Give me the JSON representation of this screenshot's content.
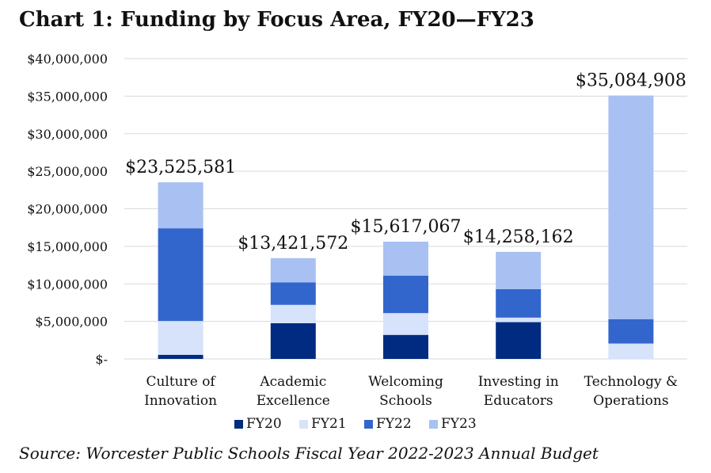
{
  "title": "Chart 1: Funding by Focus Area, FY20—FY23",
  "source": "Source: Worcester Public Schools Fiscal Year 2022-2023 Annual Budget",
  "colors": {
    "FY20": "#002b80",
    "FY21": "#d6e3fb",
    "FY22": "#3366cc",
    "FY23": "#a8c1f2",
    "grid": "#d9d9d9",
    "text": "#111111"
  },
  "chart_data": {
    "type": "bar",
    "stacked": true,
    "categories": [
      [
        "Culture of",
        "Innovation"
      ],
      [
        "Academic",
        "Excellence"
      ],
      [
        "Welcoming",
        "Schools"
      ],
      [
        "Investing in",
        "Educators"
      ],
      [
        "Technology &",
        "Operations"
      ]
    ],
    "series": [
      {
        "name": "FY20",
        "values": [
          550000,
          4750000,
          3200000,
          4900000,
          0
        ]
      },
      {
        "name": "FY21",
        "values": [
          4500000,
          2450000,
          2900000,
          600000,
          2050000
        ]
      },
      {
        "name": "FY22",
        "values": [
          12350000,
          3000000,
          5000000,
          3800000,
          3250000
        ]
      },
      {
        "name": "FY23",
        "values": [
          6125581,
          3221572,
          4517067,
          4958162,
          29784908
        ]
      }
    ],
    "totals": [
      23525581,
      13421572,
      15617067,
      14258162,
      35084908
    ],
    "total_labels": [
      "$23,525,581",
      "$13,421,572",
      "$15,617,067",
      "$14,258,162",
      "$35,084,908"
    ],
    "ylim": [
      0,
      40000000
    ],
    "yticks": [
      0,
      5000000,
      10000000,
      15000000,
      20000000,
      25000000,
      30000000,
      35000000,
      40000000
    ],
    "ytick_labels": [
      "$-",
      "$5,000,000",
      "$10,000,000",
      "$15,000,000",
      "$20,000,000",
      "$25,000,000",
      "$30,000,000",
      "$35,000,000",
      "$40,000,000"
    ],
    "grid": true,
    "legend": "bottom",
    "xlabel": "",
    "ylabel": ""
  }
}
